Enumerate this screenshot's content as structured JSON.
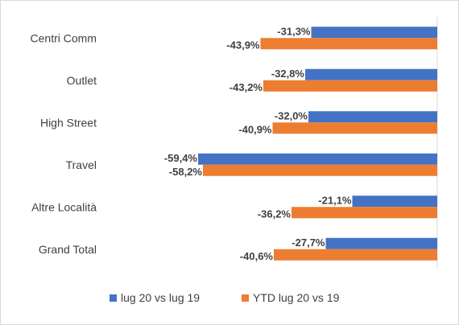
{
  "chart_data": {
    "type": "bar",
    "orientation": "horizontal",
    "categories": [
      "Centri Comm",
      "Outlet",
      "High Street",
      "Travel",
      "Altre Località",
      "Grand Total"
    ],
    "series": [
      {
        "name": "lug 20 vs lug 19",
        "color": "#4472c4",
        "values": [
          -31.3,
          -32.8,
          -32.0,
          -59.4,
          -21.1,
          -27.7
        ],
        "labels": [
          "-31,3%",
          "-32,8%",
          "-32,0%",
          "-59,4%",
          "-21,1%",
          "-27,7%"
        ]
      },
      {
        "name": "YTD lug 20 vs 19",
        "color": "#ed7d31",
        "values": [
          -43.9,
          -43.2,
          -40.9,
          -58.2,
          -36.2,
          -40.6
        ],
        "labels": [
          "-43,9%",
          "-43,2%",
          "-40,9%",
          "-58,2%",
          "-36,2%",
          "-40,6%"
        ]
      }
    ],
    "xlim": [
      -60,
      0
    ],
    "grid": false,
    "legend_position": "bottom",
    "title": "",
    "xlabel": "",
    "ylabel": ""
  }
}
